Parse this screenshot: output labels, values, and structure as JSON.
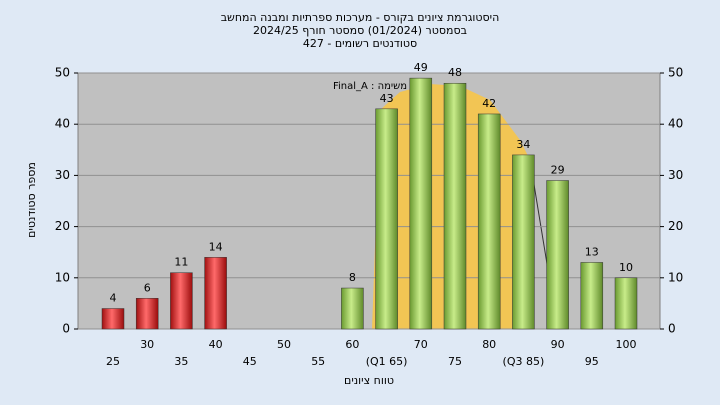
{
  "chart_data": {
    "type": "bar",
    "title": [
      "היסטוגרמת ציונים בקורס - מערכות ספרתיות ומבנה המחשב",
      "בסמסטר  (01/2024)  סמסטר חורף 2024/25",
      "סטודנטים רשומים - 427"
    ],
    "annotation": "Final_A : משימה",
    "xlabel": "טווח ציונים",
    "ylabel": "מספר סטודנטים",
    "categories": [
      "25",
      "30",
      "35",
      "40",
      "45",
      "50",
      "55",
      "60",
      "(Q1 65)",
      "70",
      "75",
      "80",
      "(Q3 85)",
      "90",
      "95",
      "100"
    ],
    "values": [
      4,
      6,
      11,
      14,
      null,
      null,
      null,
      8,
      43,
      49,
      48,
      42,
      34,
      29,
      13,
      10
    ],
    "colors": [
      "#e02828",
      "#e02828",
      "#e02828",
      "#e02828",
      "#e02828",
      "#e02828",
      "#e02828",
      "#8cc850",
      "#8cc850",
      "#8cc850",
      "#8cc850",
      "#8cc850",
      "#8cc850",
      "#8cc850",
      "#8cc850",
      "#8cc850"
    ],
    "ylim": [
      0,
      50
    ],
    "yticks": [
      0,
      10,
      20,
      30,
      40,
      50
    ],
    "y2lim": [
      0,
      50
    ],
    "y2ticks": [
      0,
      10,
      20,
      30,
      40,
      50
    ],
    "grid": true
  }
}
